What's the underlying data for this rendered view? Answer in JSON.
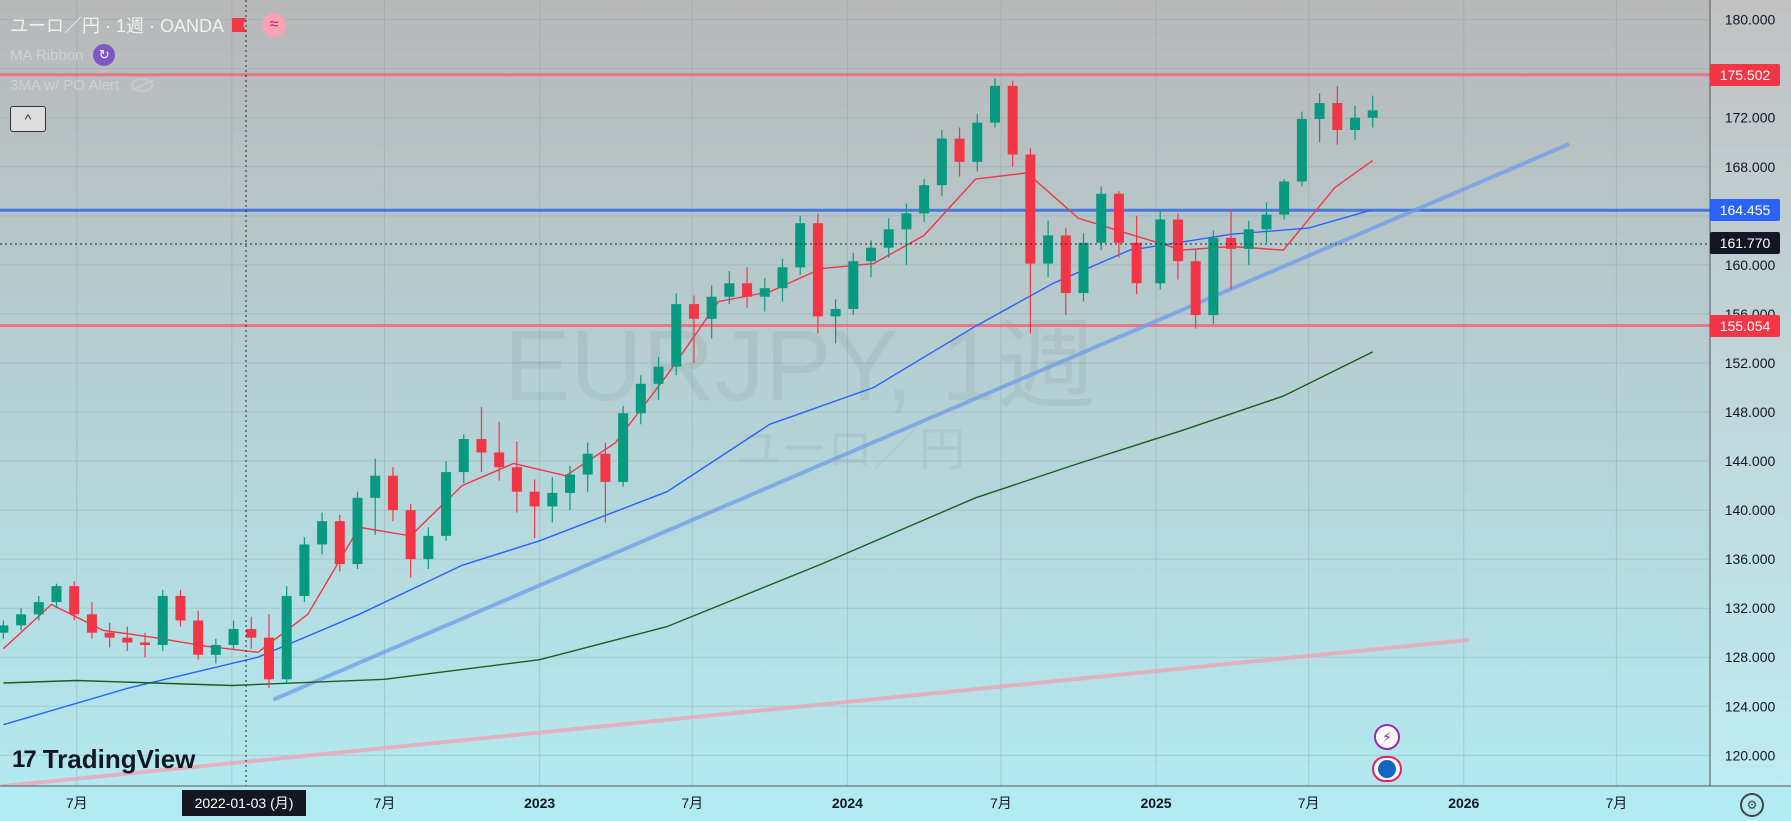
{
  "legend": {
    "symbol_title": "ユーロ／円 · 1週 · OANDA",
    "indicator1": "MA Ribbon",
    "indicator2": "3MA w/ PO Alert",
    "collapse_glyph": "^"
  },
  "watermark": {
    "symbol": "EURJPY, 1週",
    "name": "ユーロ／円"
  },
  "brand": {
    "logo_text": "TradingView",
    "logo_mark": "17"
  },
  "crosshair_date": "2022-01-03 (月)",
  "colors": {
    "bg_top": "#b8b8b8",
    "bg_bottom": "#b2ebf2",
    "up": "#089981",
    "down": "#f23645",
    "resistance": "#f06b7d",
    "support_line": "#3a6fe6",
    "trendline": "#6f9ce8",
    "ma_fast": "#f23645",
    "ma_mid": "#2962ff",
    "ma_slow": "#1b5e20",
    "lower_trend": "#f0a0b4"
  },
  "chart_data": {
    "type": "candlestick",
    "title": "",
    "xlabel": "",
    "ylabel": "",
    "x_range": [
      "2021-04-01",
      "2026-10-20"
    ],
    "ylim": [
      117.5,
      181.6
    ],
    "y_ticks": [
      "180.000",
      "176.000",
      "172.000",
      "168.000",
      "164.000",
      "160.000",
      "156.000",
      "152.000",
      "148.000",
      "144.000",
      "140.000",
      "136.000",
      "132.000",
      "128.000",
      "124.000",
      "120.000"
    ],
    "x_ticks": [
      {
        "label": "7月",
        "date": "2021-07-01"
      },
      {
        "label": "2022",
        "date": "2022-01-01"
      },
      {
        "label": "7月",
        "date": "2022-07-01"
      },
      {
        "label": "2023",
        "date": "2023-01-01"
      },
      {
        "label": "7月",
        "date": "2023-07-01"
      },
      {
        "label": "2024",
        "date": "2024-01-01"
      },
      {
        "label": "7月",
        "date": "2024-07-01"
      },
      {
        "label": "2025",
        "date": "2025-01-01"
      },
      {
        "label": "7月",
        "date": "2025-07-01"
      },
      {
        "label": "2026",
        "date": "2026-01-01"
      },
      {
        "label": "7月",
        "date": "2026-07-01"
      }
    ],
    "price_labels": [
      {
        "value": 175.502,
        "text": "175.502",
        "color": "#f23645"
      },
      {
        "value": 164.455,
        "text": "164.455",
        "color": "#2962ff"
      },
      {
        "value": 161.77,
        "text": "161.770",
        "color": "#131722"
      },
      {
        "value": 155.054,
        "text": "155.054",
        "color": "#f23645"
      }
    ],
    "horizontal_levels": [
      {
        "value": 175.502,
        "kind": "resistance"
      },
      {
        "value": 164.455,
        "kind": "support"
      },
      {
        "value": 155.054,
        "kind": "resistance"
      }
    ],
    "trendlines": [
      {
        "kind": "trendline",
        "from": [
          "2022-02-21",
          124.6
        ],
        "to": [
          "2026-05-04",
          169.8
        ]
      },
      {
        "kind": "lower_trend",
        "from": [
          "2021-04-05",
          117.5
        ],
        "to": [
          "2026-01-05",
          129.4
        ]
      }
    ],
    "series": [
      {
        "kind": "ma_fast",
        "points": [
          [
            "2021-04-05",
            128.7
          ],
          [
            "2021-06-01",
            132.3
          ],
          [
            "2021-08-01",
            130.2
          ],
          [
            "2021-10-01",
            129.6
          ],
          [
            "2021-12-01",
            128.9
          ],
          [
            "2022-02-01",
            128.4
          ],
          [
            "2022-04-01",
            131.5
          ],
          [
            "2022-06-01",
            138.6
          ],
          [
            "2022-08-01",
            137.9
          ],
          [
            "2022-10-01",
            142.0
          ],
          [
            "2022-12-01",
            143.8
          ],
          [
            "2023-02-01",
            142.8
          ],
          [
            "2023-04-01",
            145.5
          ],
          [
            "2023-06-01",
            151.0
          ],
          [
            "2023-08-01",
            157.0
          ],
          [
            "2023-10-01",
            157.8
          ],
          [
            "2023-12-01",
            159.7
          ],
          [
            "2024-02-01",
            160.1
          ],
          [
            "2024-04-01",
            162.4
          ],
          [
            "2024-06-01",
            167.0
          ],
          [
            "2024-08-01",
            167.5
          ],
          [
            "2024-10-01",
            163.8
          ],
          [
            "2024-12-01",
            162.5
          ],
          [
            "2025-02-01",
            161.2
          ],
          [
            "2025-04-01",
            161.5
          ],
          [
            "2025-06-01",
            161.2
          ],
          [
            "2025-08-01",
            166.3
          ],
          [
            "2025-09-15",
            168.5
          ]
        ]
      },
      {
        "kind": "ma_mid",
        "points": [
          [
            "2021-04-05",
            122.5
          ],
          [
            "2021-09-01",
            125.5
          ],
          [
            "2022-02-01",
            128.0
          ],
          [
            "2022-06-01",
            131.5
          ],
          [
            "2022-10-01",
            135.5
          ],
          [
            "2023-01-01",
            137.5
          ],
          [
            "2023-06-01",
            141.5
          ],
          [
            "2023-10-01",
            147.0
          ],
          [
            "2024-02-01",
            150.0
          ],
          [
            "2024-06-01",
            155.0
          ],
          [
            "2024-09-01",
            158.5
          ],
          [
            "2024-12-01",
            161.2
          ],
          [
            "2025-04-01",
            162.5
          ],
          [
            "2025-07-01",
            163.0
          ],
          [
            "2025-09-15",
            164.5
          ]
        ]
      },
      {
        "kind": "ma_slow",
        "points": [
          [
            "2021-04-05",
            125.9
          ],
          [
            "2021-07-01",
            126.1
          ],
          [
            "2022-01-01",
            125.7
          ],
          [
            "2022-07-01",
            126.2
          ],
          [
            "2023-01-01",
            127.8
          ],
          [
            "2023-06-01",
            130.5
          ],
          [
            "2023-12-01",
            135.6
          ],
          [
            "2024-06-01",
            141.0
          ],
          [
            "2024-10-01",
            143.8
          ],
          [
            "2025-02-01",
            146.5
          ],
          [
            "2025-06-01",
            149.3
          ],
          [
            "2025-09-15",
            152.9
          ]
        ]
      }
    ],
    "candles": [
      [
        "2021-04-05",
        130.0,
        131.0,
        129.5,
        130.6
      ],
      [
        "2021-04-26",
        130.6,
        132.0,
        130.2,
        131.5
      ],
      [
        "2021-05-17",
        131.5,
        133.0,
        131.0,
        132.5
      ],
      [
        "2021-06-07",
        132.5,
        134.0,
        132.0,
        133.8
      ],
      [
        "2021-06-28",
        133.8,
        134.2,
        131.0,
        131.5
      ],
      [
        "2021-07-19",
        131.5,
        132.5,
        129.5,
        130.0
      ],
      [
        "2021-08-09",
        130.0,
        130.8,
        128.8,
        129.6
      ],
      [
        "2021-08-30",
        129.6,
        130.5,
        128.5,
        129.2
      ],
      [
        "2021-09-20",
        129.2,
        130.0,
        128.0,
        129.0
      ],
      [
        "2021-10-11",
        129.0,
        133.5,
        128.5,
        133.0
      ],
      [
        "2021-11-01",
        133.0,
        133.5,
        130.5,
        131.0
      ],
      [
        "2021-11-22",
        131.0,
        131.8,
        127.8,
        128.2
      ],
      [
        "2021-12-13",
        128.2,
        129.5,
        127.5,
        129.0
      ],
      [
        "2022-01-03",
        129.0,
        131.0,
        128.6,
        130.3
      ],
      [
        "2022-01-24",
        130.3,
        131.3,
        128.7,
        129.6
      ],
      [
        "2022-02-14",
        129.6,
        131.5,
        125.5,
        126.2
      ],
      [
        "2022-03-07",
        126.2,
        133.8,
        125.8,
        133.0
      ],
      [
        "2022-03-28",
        133.0,
        137.8,
        132.5,
        137.2
      ],
      [
        "2022-04-18",
        137.2,
        139.8,
        136.4,
        139.1
      ],
      [
        "2022-05-09",
        139.1,
        139.6,
        135.0,
        135.6
      ],
      [
        "2022-05-30",
        135.6,
        141.5,
        135.2,
        141.0
      ],
      [
        "2022-06-20",
        141.0,
        144.2,
        138.0,
        142.8
      ],
      [
        "2022-07-11",
        142.8,
        143.5,
        139.1,
        140.0
      ],
      [
        "2022-08-01",
        140.0,
        140.5,
        134.5,
        136.0
      ],
      [
        "2022-08-22",
        136.0,
        138.6,
        135.2,
        137.9
      ],
      [
        "2022-09-12",
        137.9,
        144.0,
        137.5,
        143.1
      ],
      [
        "2022-10-03",
        143.1,
        146.2,
        142.2,
        145.8
      ],
      [
        "2022-10-24",
        145.8,
        148.4,
        143.1,
        144.7
      ],
      [
        "2022-11-14",
        144.7,
        147.2,
        142.4,
        143.5
      ],
      [
        "2022-12-05",
        143.5,
        145.6,
        139.8,
        141.5
      ],
      [
        "2022-12-26",
        141.5,
        142.5,
        137.7,
        140.3
      ],
      [
        "2023-01-16",
        140.3,
        142.7,
        139.0,
        141.4
      ],
      [
        "2023-02-06",
        141.4,
        143.6,
        140.0,
        142.9
      ],
      [
        "2023-02-27",
        142.9,
        145.5,
        141.5,
        144.6
      ],
      [
        "2023-03-20",
        144.6,
        145.5,
        139.0,
        142.3
      ],
      [
        "2023-04-10",
        142.3,
        148.5,
        141.9,
        147.9
      ],
      [
        "2023-05-01",
        147.9,
        151.0,
        147.0,
        150.3
      ],
      [
        "2023-05-22",
        150.3,
        152.5,
        149.0,
        151.7
      ],
      [
        "2023-06-12",
        151.7,
        157.7,
        151.0,
        156.8
      ],
      [
        "2023-07-03",
        156.8,
        157.5,
        152.0,
        155.6
      ],
      [
        "2023-07-24",
        155.6,
        158.3,
        154.0,
        157.4
      ],
      [
        "2023-08-14",
        157.4,
        159.5,
        156.8,
        158.5
      ],
      [
        "2023-09-04",
        158.5,
        159.8,
        156.5,
        157.4
      ],
      [
        "2023-09-25",
        157.4,
        158.9,
        156.2,
        158.1
      ],
      [
        "2023-10-16",
        158.1,
        160.5,
        157.0,
        159.8
      ],
      [
        "2023-11-06",
        159.8,
        164.0,
        159.2,
        163.4
      ],
      [
        "2023-11-27",
        163.4,
        164.2,
        154.4,
        155.8
      ],
      [
        "2023-12-18",
        155.8,
        157.2,
        153.6,
        156.4
      ],
      [
        "2024-01-08",
        156.4,
        161.0,
        155.9,
        160.3
      ],
      [
        "2024-01-29",
        160.3,
        162.0,
        159.0,
        161.4
      ],
      [
        "2024-02-19",
        161.4,
        163.8,
        160.6,
        162.9
      ],
      [
        "2024-03-11",
        162.9,
        165.0,
        160.0,
        164.2
      ],
      [
        "2024-04-01",
        164.2,
        167.0,
        163.5,
        166.5
      ],
      [
        "2024-04-22",
        166.5,
        171.0,
        165.6,
        170.3
      ],
      [
        "2024-05-13",
        170.3,
        171.2,
        167.2,
        168.4
      ],
      [
        "2024-06-03",
        168.4,
        172.3,
        167.6,
        171.6
      ],
      [
        "2024-06-24",
        171.6,
        175.2,
        171.2,
        174.6
      ],
      [
        "2024-07-15",
        174.6,
        175.0,
        168.0,
        169.0
      ],
      [
        "2024-08-05",
        169.0,
        169.5,
        154.4,
        160.1
      ],
      [
        "2024-08-26",
        160.1,
        163.6,
        159.0,
        162.4
      ],
      [
        "2024-09-16",
        162.4,
        163.0,
        155.9,
        157.7
      ],
      [
        "2024-10-07",
        157.7,
        162.6,
        157.0,
        161.8
      ],
      [
        "2024-10-28",
        161.8,
        166.4,
        161.2,
        165.8
      ],
      [
        "2024-11-18",
        165.8,
        166.0,
        160.6,
        161.8
      ],
      [
        "2024-12-09",
        161.8,
        164.0,
        157.6,
        158.5
      ],
      [
        "2025-01-06",
        158.5,
        164.5,
        158.0,
        163.7
      ],
      [
        "2025-01-27",
        163.7,
        164.2,
        158.8,
        160.3
      ],
      [
        "2025-02-17",
        160.3,
        161.3,
        154.8,
        155.9
      ],
      [
        "2025-03-10",
        155.9,
        162.8,
        155.2,
        162.2
      ],
      [
        "2025-03-31",
        162.2,
        164.5,
        158.0,
        161.3
      ],
      [
        "2025-04-21",
        161.3,
        163.6,
        160.0,
        162.9
      ],
      [
        "2025-05-12",
        162.9,
        165.1,
        161.8,
        164.1
      ],
      [
        "2025-06-02",
        164.1,
        167.0,
        163.7,
        166.8
      ],
      [
        "2025-06-23",
        166.8,
        172.5,
        166.4,
        171.9
      ],
      [
        "2025-07-14",
        171.9,
        174.0,
        170.0,
        173.2
      ],
      [
        "2025-08-04",
        173.2,
        174.6,
        169.8,
        171.0
      ],
      [
        "2025-08-25",
        171.0,
        173.0,
        170.2,
        172.0
      ],
      [
        "2025-09-15",
        172.0,
        173.8,
        171.2,
        172.6
      ]
    ]
  }
}
